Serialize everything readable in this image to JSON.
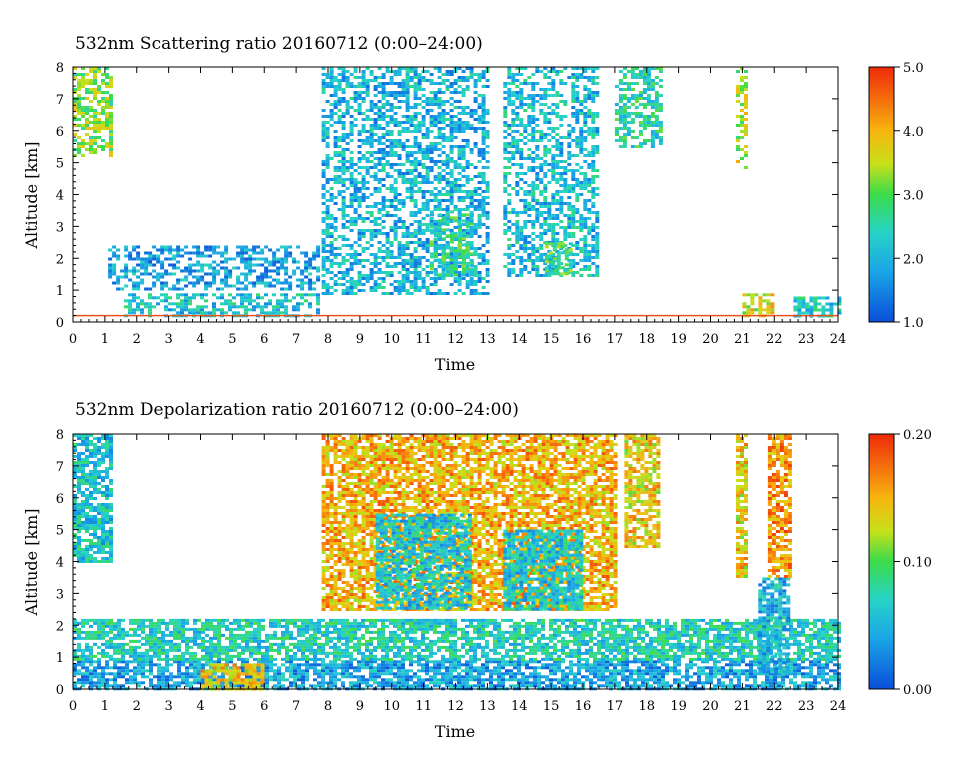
{
  "chart_data": [
    {
      "type": "heatmap",
      "title": "532nm Scattering ratio  20160712 (0:00–24:00)",
      "xlabel": "Time",
      "ylabel": "Altitude [km]",
      "xlim": [
        0,
        24
      ],
      "ylim": [
        0,
        8
      ],
      "x_ticks": [
        "0",
        "1",
        "2",
        "3",
        "4",
        "5",
        "6",
        "7",
        "8",
        "9",
        "10",
        "11",
        "12",
        "13",
        "14",
        "15",
        "16",
        "17",
        "18",
        "19",
        "20",
        "21",
        "22",
        "23",
        "24"
      ],
      "y_ticks": [
        "0",
        "1",
        "2",
        "3",
        "4",
        "5",
        "6",
        "7",
        "8"
      ],
      "colorbar": {
        "range": [
          1.0,
          5.0
        ],
        "ticks": [
          "5.0",
          "4.0",
          "3.0",
          "2.0",
          "1.0"
        ]
      },
      "reference_line_km": 0.2,
      "features": [
        {
          "x": [
            0.0,
            1.2
          ],
          "y": [
            5.2,
            8.0
          ],
          "v": 3.2
        },
        {
          "x": [
            1.6,
            7.7
          ],
          "y": [
            0.2,
            0.9
          ],
          "v": 2.2
        },
        {
          "x": [
            1.1,
            7.7
          ],
          "y": [
            1.0,
            2.4
          ],
          "v": 1.8
        },
        {
          "x": [
            7.8,
            13.0
          ],
          "y": [
            0.9,
            8.0
          ],
          "v": 2.0
        },
        {
          "x": [
            11.2,
            12.5
          ],
          "y": [
            1.5,
            3.5
          ],
          "v": 2.6
        },
        {
          "x": [
            13.5,
            16.5
          ],
          "y": [
            1.5,
            8.0
          ],
          "v": 2.1
        },
        {
          "x": [
            14.8,
            15.6
          ],
          "y": [
            1.5,
            2.5
          ],
          "v": 2.8
        },
        {
          "x": [
            17.0,
            18.4
          ],
          "y": [
            5.5,
            8.0
          ],
          "v": 2.5
        },
        {
          "x": [
            20.8,
            21.1
          ],
          "y": [
            4.8,
            8.0
          ],
          "v": 3.4
        },
        {
          "x": [
            21.0,
            22.0
          ],
          "y": [
            0.2,
            0.9
          ],
          "v": 3.6
        },
        {
          "x": [
            22.6,
            24.0
          ],
          "y": [
            0.2,
            0.8
          ],
          "v": 2.3
        }
      ]
    },
    {
      "type": "heatmap",
      "title": "532nm Depolarization ratio  20160712 (0:00–24:00)",
      "xlabel": "Time",
      "ylabel": "Altitude [km]",
      "xlim": [
        0,
        24
      ],
      "ylim": [
        0,
        8
      ],
      "x_ticks": [
        "0",
        "1",
        "2",
        "3",
        "4",
        "5",
        "6",
        "7",
        "8",
        "9",
        "10",
        "11",
        "12",
        "13",
        "14",
        "15",
        "16",
        "17",
        "18",
        "19",
        "20",
        "21",
        "22",
        "23",
        "24"
      ],
      "y_ticks": [
        "0",
        "1",
        "2",
        "3",
        "4",
        "5",
        "6",
        "7",
        "8"
      ],
      "colorbar": {
        "range": [
          0.0,
          0.2
        ],
        "ticks": [
          "0.20",
          "0.10",
          "0.00"
        ]
      },
      "features": [
        {
          "x": [
            0.0,
            24.0
          ],
          "y": [
            0.0,
            0.9
          ],
          "v": 0.04
        },
        {
          "x": [
            0.0,
            24.0
          ],
          "y": [
            0.9,
            2.2
          ],
          "v": 0.07
        },
        {
          "x": [
            0.0,
            1.2
          ],
          "y": [
            4.0,
            8.0
          ],
          "v": 0.06
        },
        {
          "x": [
            7.8,
            17.0
          ],
          "y": [
            2.5,
            8.0
          ],
          "v": 0.15
        },
        {
          "x": [
            9.5,
            12.5
          ],
          "y": [
            2.5,
            5.5
          ],
          "v": 0.06
        },
        {
          "x": [
            13.5,
            16.0
          ],
          "y": [
            2.5,
            5.0
          ],
          "v": 0.06
        },
        {
          "x": [
            4.0,
            6.0
          ],
          "y": [
            0.0,
            0.8
          ],
          "v": 0.14
        },
        {
          "x": [
            21.5,
            22.5
          ],
          "y": [
            0.5,
            3.5
          ],
          "v": 0.05
        },
        {
          "x": [
            21.8,
            22.5
          ],
          "y": [
            3.5,
            8.0
          ],
          "v": 0.16
        },
        {
          "x": [
            17.3,
            18.4
          ],
          "y": [
            4.5,
            8.0
          ],
          "v": 0.14
        },
        {
          "x": [
            20.8,
            21.1
          ],
          "y": [
            3.5,
            8.0
          ],
          "v": 0.14
        }
      ]
    }
  ]
}
